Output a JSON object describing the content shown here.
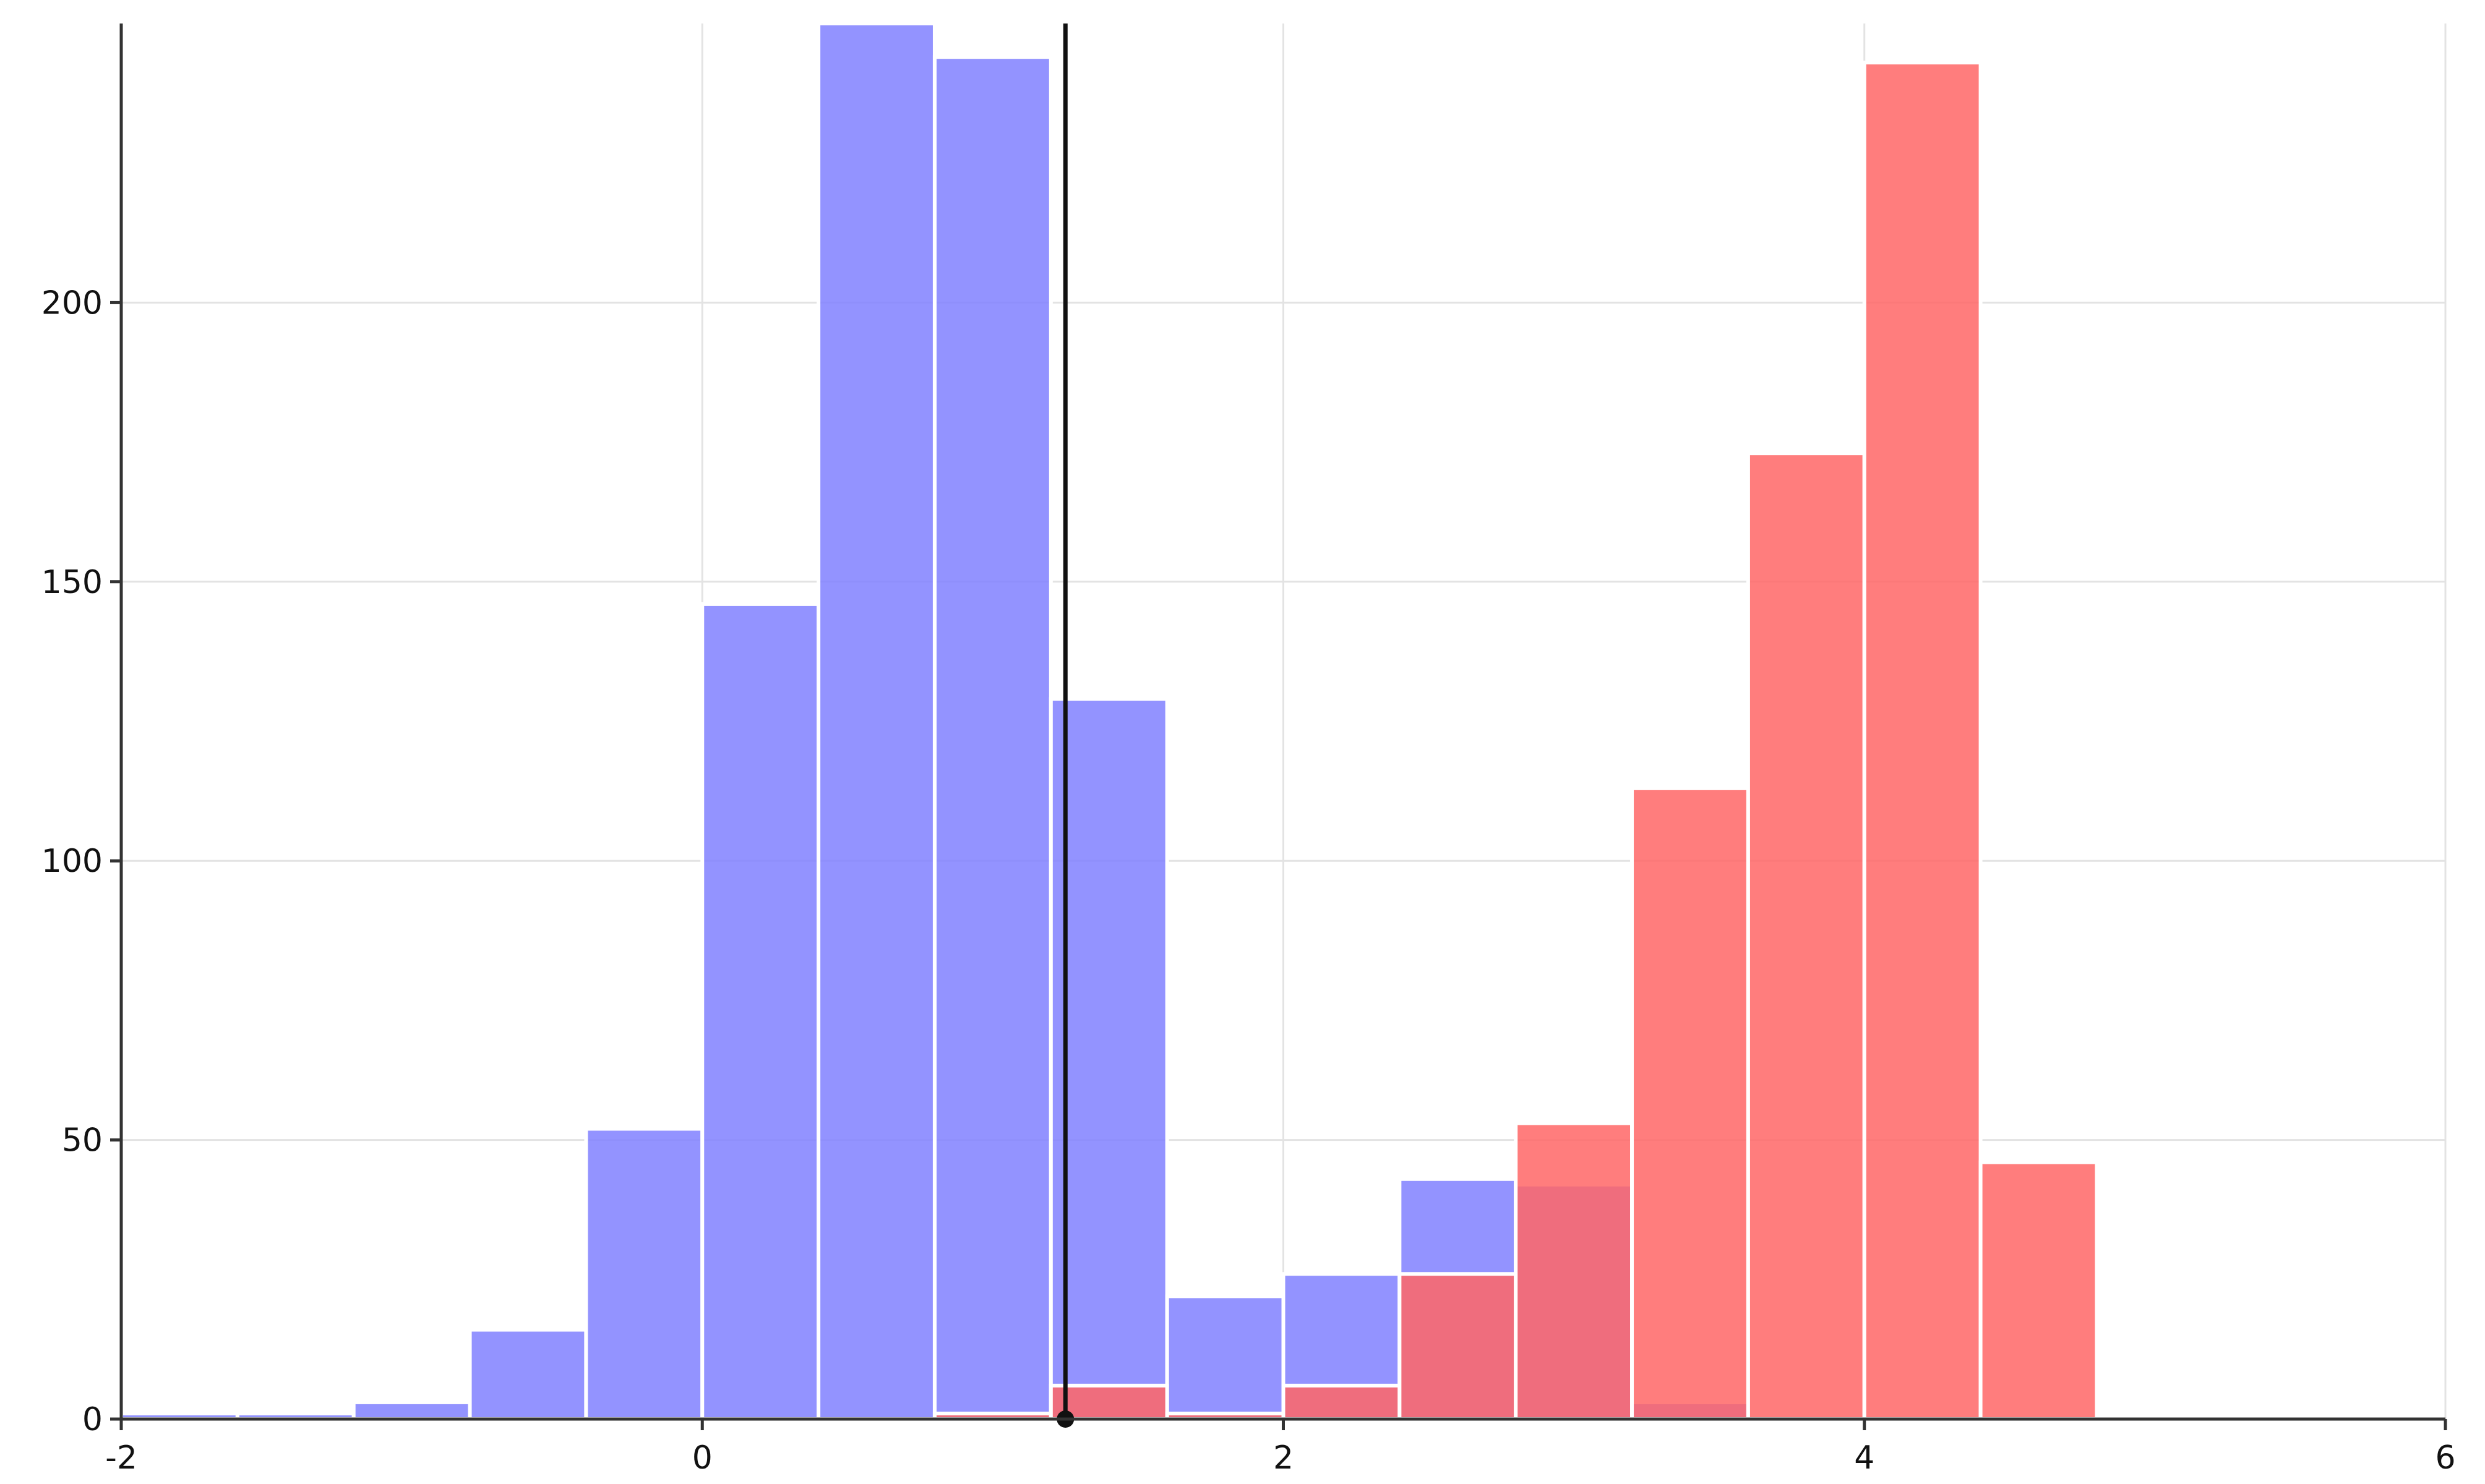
{
  "chart_data": {
    "type": "bar",
    "title": "",
    "xlabel": "",
    "ylabel": "",
    "xlim": [
      -2,
      6
    ],
    "ylim": [
      0,
      250
    ],
    "x_ticks": [
      -2,
      0,
      2,
      4,
      6
    ],
    "y_ticks": [
      0,
      50,
      100,
      150,
      200
    ],
    "x_tick_labels": [
      "-2",
      "0",
      "2",
      "4",
      "6"
    ],
    "y_tick_labels": [
      "0",
      "50",
      "100",
      "150",
      "200"
    ],
    "grid": true,
    "legend": "none",
    "bin_width": 0.4,
    "series": [
      {
        "color": "#8080ff",
        "bins": [
          {
            "start": -2.0,
            "end": -1.6,
            "count": 1
          },
          {
            "start": -1.6,
            "end": -1.2,
            "count": 1
          },
          {
            "start": -1.2,
            "end": -0.8,
            "count": 3
          },
          {
            "start": -0.8,
            "end": -0.4,
            "count": 16
          },
          {
            "start": -0.4,
            "end": 0.0,
            "count": 52
          },
          {
            "start": 0.0,
            "end": 0.4,
            "count": 146
          },
          {
            "start": 0.4,
            "end": 0.8,
            "count": 250
          },
          {
            "start": 0.8,
            "end": 1.2,
            "count": 244
          },
          {
            "start": 1.2,
            "end": 1.6,
            "count": 129
          },
          {
            "start": 1.6,
            "end": 2.0,
            "count": 22
          },
          {
            "start": 2.0,
            "end": 2.4,
            "count": 26
          },
          {
            "start": 2.4,
            "end": 2.8,
            "count": 43
          },
          {
            "start": 2.8,
            "end": 3.2,
            "count": 42
          },
          {
            "start": 3.2,
            "end": 3.6,
            "count": 3
          }
        ]
      },
      {
        "color": "#ff6666",
        "bins": [
          {
            "start": 0.8,
            "end": 1.2,
            "count": 1
          },
          {
            "start": 1.2,
            "end": 1.6,
            "count": 6
          },
          {
            "start": 1.6,
            "end": 2.0,
            "count": 1
          },
          {
            "start": 2.0,
            "end": 2.4,
            "count": 6
          },
          {
            "start": 2.4,
            "end": 2.8,
            "count": 26
          },
          {
            "start": 2.8,
            "end": 3.2,
            "count": 53
          },
          {
            "start": 3.2,
            "end": 3.6,
            "count": 113
          },
          {
            "start": 3.6,
            "end": 4.0,
            "count": 173
          },
          {
            "start": 4.0,
            "end": 4.4,
            "count": 243
          },
          {
            "start": 4.4,
            "end": 4.8,
            "count": 46
          }
        ]
      }
    ],
    "annotations": [
      {
        "type": "vertical-line",
        "x": 1.25,
        "color": "#111111",
        "marker": "dot-at-baseline"
      }
    ]
  }
}
